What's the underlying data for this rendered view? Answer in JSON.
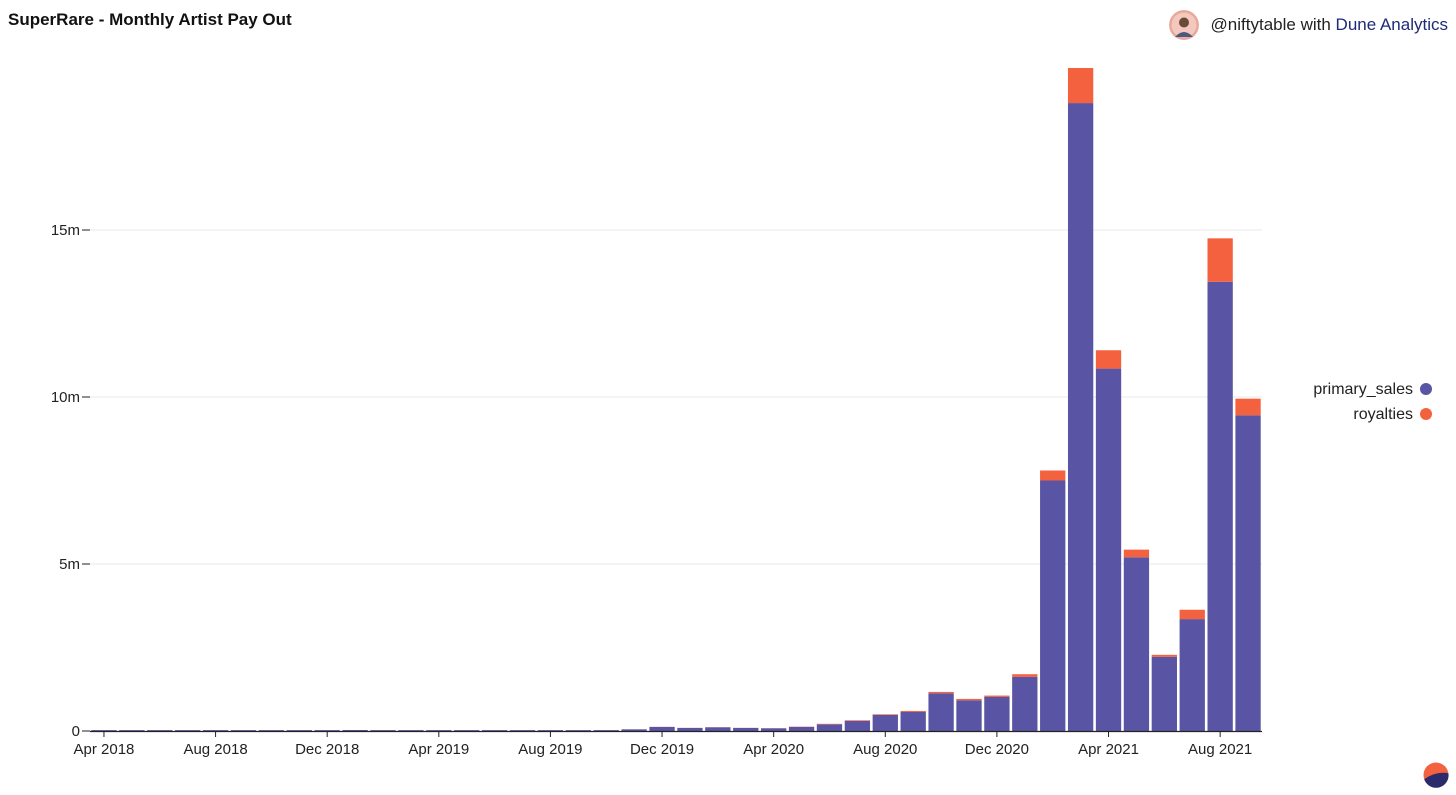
{
  "header": {
    "title": "SuperRare - Monthly Artist Pay Out",
    "credit_user": "@niftytable",
    "credit_with": "with",
    "credit_brand": "Dune Analytics"
  },
  "colors": {
    "primary_sales": "#5954a4",
    "royalties": "#f4613e",
    "grid": "#e8e8ee",
    "axis": "#222222",
    "brand": "#1f2a78"
  },
  "chart_data": {
    "type": "bar",
    "stacked": true,
    "title": "SuperRare - Monthly Artist Pay Out",
    "xlabel": "",
    "ylabel": "",
    "ylim": [
      0,
      20000000
    ],
    "yticks": [
      0,
      5000000,
      10000000,
      15000000
    ],
    "ytick_labels": [
      "0",
      "5m",
      "10m",
      "15m"
    ],
    "xtick_labels": [
      "Apr 2018",
      "Aug 2018",
      "Dec 2018",
      "Apr 2019",
      "Aug 2019",
      "Dec 2019",
      "Apr 2020",
      "Aug 2020",
      "Dec 2020",
      "Apr 2021",
      "Aug 2021"
    ],
    "xtick_months": [
      "2018-04",
      "2018-08",
      "2018-12",
      "2019-04",
      "2019-08",
      "2019-12",
      "2020-04",
      "2020-08",
      "2020-12",
      "2021-04",
      "2021-08"
    ],
    "legend_position": "right",
    "categories": [
      "2018-04",
      "2018-05",
      "2018-06",
      "2018-07",
      "2018-08",
      "2018-09",
      "2018-10",
      "2018-11",
      "2018-12",
      "2019-01",
      "2019-02",
      "2019-03",
      "2019-04",
      "2019-05",
      "2019-06",
      "2019-07",
      "2019-08",
      "2019-09",
      "2019-10",
      "2019-11",
      "2019-12",
      "2020-01",
      "2020-02",
      "2020-03",
      "2020-04",
      "2020-05",
      "2020-06",
      "2020-07",
      "2020-08",
      "2020-09",
      "2020-10",
      "2020-11",
      "2020-12",
      "2021-01",
      "2021-02",
      "2021-03",
      "2021-04",
      "2021-05",
      "2021-06",
      "2021-07",
      "2021-08",
      "2021-09"
    ],
    "series": [
      {
        "name": "primary_sales",
        "values": [
          8000,
          10000,
          12000,
          15000,
          12000,
          12000,
          15000,
          20000,
          25000,
          30000,
          25000,
          25000,
          20000,
          20000,
          20000,
          20000,
          20000,
          20000,
          25000,
          50000,
          120000,
          90000,
          110000,
          90000,
          80000,
          120000,
          200000,
          300000,
          480000,
          570000,
          1130000,
          920000,
          1020000,
          1620000,
          7500000,
          18800000,
          10850000,
          5200000,
          2220000,
          3350000,
          13450000,
          9450000
        ]
      },
      {
        "name": "royalties",
        "values": [
          0,
          0,
          0,
          0,
          0,
          0,
          0,
          0,
          0,
          0,
          0,
          0,
          0,
          0,
          0,
          0,
          0,
          0,
          0,
          0,
          5000,
          5000,
          5000,
          5000,
          5000,
          10000,
          15000,
          20000,
          20000,
          30000,
          40000,
          40000,
          40000,
          80000,
          300000,
          1050000,
          550000,
          230000,
          60000,
          280000,
          1300000,
          500000
        ]
      }
    ]
  }
}
